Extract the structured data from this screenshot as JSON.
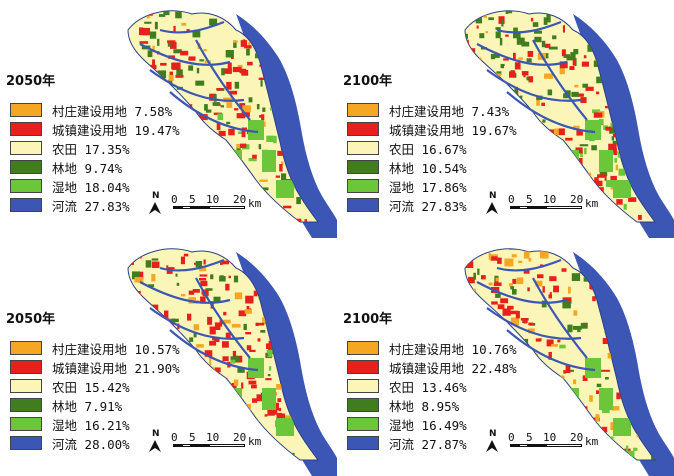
{
  "colors": {
    "village": "#f5a623",
    "urban": "#e8201c",
    "farmland": "#fbf6b8",
    "forest": "#3f7d1f",
    "wetland": "#6cc63a",
    "river": "#3b56b4"
  },
  "scale": {
    "n": "N",
    "t0": "0",
    "t5": "5",
    "t10": "10",
    "t20": "20",
    "unit": "km"
  },
  "panels": [
    {
      "year": "2050年",
      "legend": [
        {
          "label": "村庄建设用地",
          "value": "7.58%",
          "color": "village"
        },
        {
          "label": "城镇建设用地",
          "value": "19.47%",
          "color": "urban"
        },
        {
          "label": "农田",
          "value": "17.35%",
          "color": "farmland"
        },
        {
          "label": "林地",
          "value": "9.74%",
          "color": "forest"
        },
        {
          "label": "湿地",
          "value": "18.04%",
          "color": "wetland"
        },
        {
          "label": "河流",
          "value": "27.83%",
          "color": "river"
        }
      ]
    },
    {
      "year": "2100年",
      "legend": [
        {
          "label": "村庄建设用地",
          "value": "7.43%",
          "color": "village"
        },
        {
          "label": "城镇建设用地",
          "value": "19.67%",
          "color": "urban"
        },
        {
          "label": "农田",
          "value": "16.67%",
          "color": "farmland"
        },
        {
          "label": "林地",
          "value": "10.54%",
          "color": "forest"
        },
        {
          "label": "湿地",
          "value": "17.86%",
          "color": "wetland"
        },
        {
          "label": "河流",
          "value": "27.83%",
          "color": "river"
        }
      ]
    },
    {
      "year": "2050年",
      "legend": [
        {
          "label": "村庄建设用地",
          "value": "10.57%",
          "color": "village"
        },
        {
          "label": "城镇建设用地",
          "value": "21.90%",
          "color": "urban"
        },
        {
          "label": "农田",
          "value": "15.42%",
          "color": "farmland"
        },
        {
          "label": "林地",
          "value": "7.91%",
          "color": "forest"
        },
        {
          "label": "湿地",
          "value": "16.21%",
          "color": "wetland"
        },
        {
          "label": "河流",
          "value": "28.00%",
          "color": "river"
        }
      ]
    },
    {
      "year": "2100年",
      "legend": [
        {
          "label": "村庄建设用地",
          "value": "10.76%",
          "color": "village"
        },
        {
          "label": "城镇建设用地",
          "value": "22.48%",
          "color": "urban"
        },
        {
          "label": "农田",
          "value": "13.46%",
          "color": "farmland"
        },
        {
          "label": "林地",
          "value": "8.95%",
          "color": "forest"
        },
        {
          "label": "湿地",
          "value": "16.49%",
          "color": "wetland"
        },
        {
          "label": "河流",
          "value": "27.87%",
          "color": "river"
        }
      ]
    }
  ]
}
